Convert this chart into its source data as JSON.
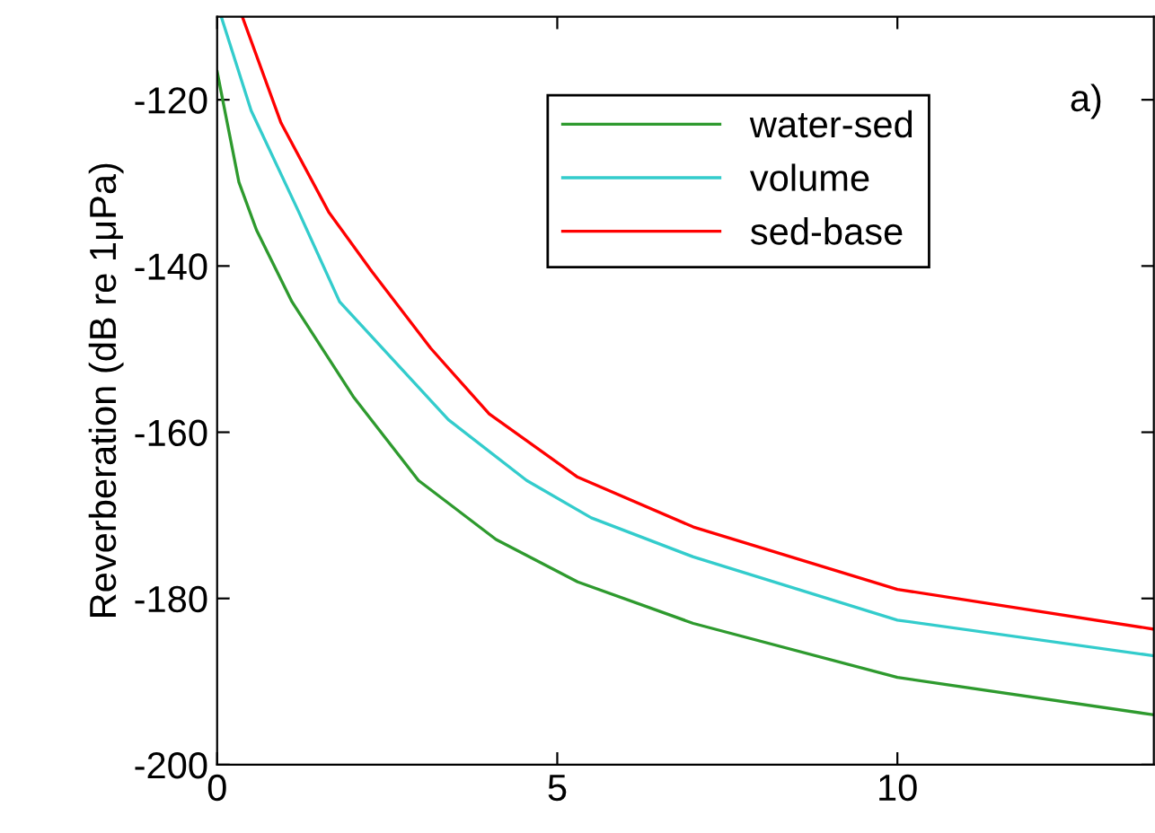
{
  "chart_data": {
    "type": "line",
    "ylabel": "Reverberation (dB re 1μPa)",
    "annotations": [
      "a)"
    ],
    "xlim": [
      0,
      13.77
    ],
    "ylim": [
      -200,
      -110
    ],
    "xticks": [
      0,
      5,
      10
    ],
    "yticks": [
      -200,
      -180,
      -160,
      -140,
      -120
    ],
    "grid": false,
    "legend": "top right",
    "marker": "none",
    "line_style": "solid",
    "series": [
      {
        "name": "water-sed",
        "color": "#2e9a2e",
        "x": [
          0,
          0.06,
          0.32,
          0.58,
          1.1,
          2.0,
          2.96,
          4.1,
          5.3,
          7.0,
          10,
          13.77
        ],
        "values": [
          -116.6,
          -119.1,
          -129.9,
          -135.7,
          -144.3,
          -155.7,
          -165.8,
          -172.9,
          -178,
          -183,
          -189.5,
          -194
        ]
      },
      {
        "name": "volume",
        "color": "#33cccc",
        "x": [
          0.06,
          0.5,
          1.2,
          1.8,
          2.6,
          3.4,
          4.55,
          5.5,
          7.0,
          10,
          13.77
        ],
        "values": [
          -110,
          -121.3,
          -133.5,
          -144.3,
          -151.4,
          -158.5,
          -165.8,
          -170.3,
          -175,
          -182.6,
          -186.9
        ]
      },
      {
        "name": "sed-base",
        "color": "#ff0000",
        "x": [
          0.37,
          0.94,
          1.64,
          2.27,
          3.14,
          4.0,
          5.3,
          7.0,
          10,
          13.77
        ],
        "values": [
          -110,
          -122.8,
          -133.5,
          -140.6,
          -149.9,
          -157.8,
          -165.4,
          -171.4,
          -178.9,
          -183.7
        ]
      }
    ]
  }
}
